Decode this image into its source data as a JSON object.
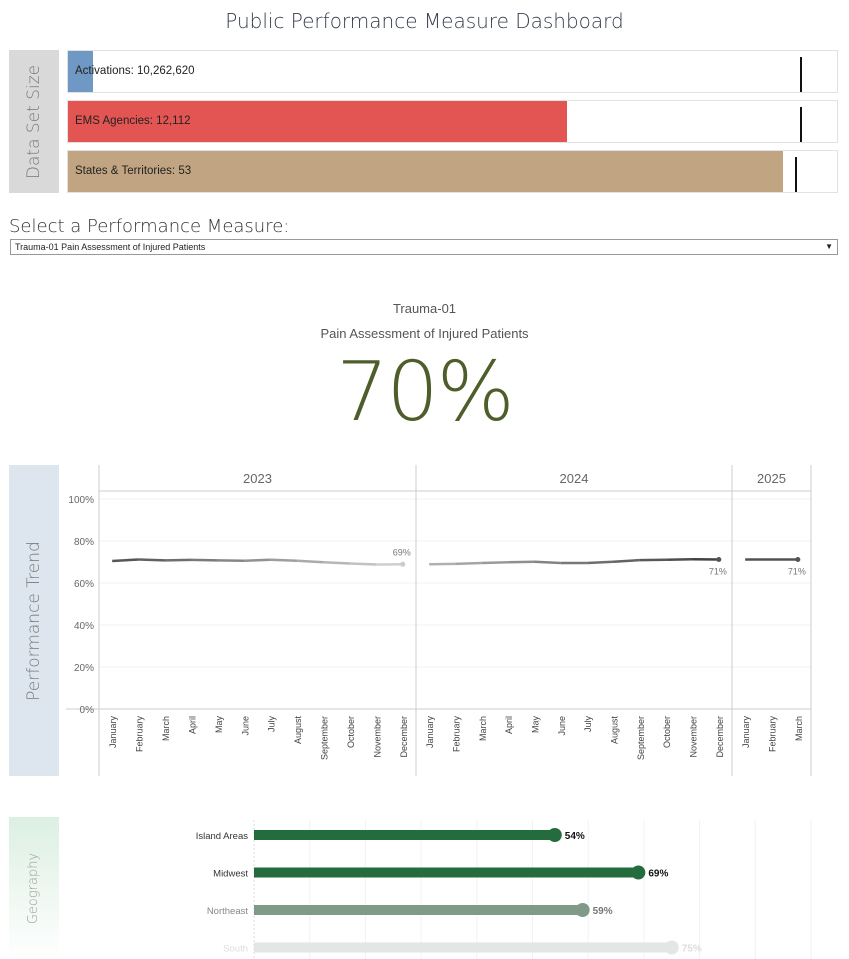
{
  "title": "Public Performance Measure Dashboard",
  "dataset": {
    "label": "Data Set Size",
    "bars": [
      {
        "label": "Activations: 10,262,620",
        "fill": 0.032,
        "ref": 0.952,
        "color": "#7098c4"
      },
      {
        "label": "EMS Agencies: 12,112",
        "fill": 0.649,
        "ref": 0.952,
        "color": "#e35552"
      },
      {
        "label": "States & Territories: 53",
        "fill": 0.93,
        "ref": 0.945,
        "color": "#c1a582"
      }
    ]
  },
  "selector": {
    "label": "Select a Performance Measure:",
    "value": "Trauma-01 Pain Assessment of Injured Patients"
  },
  "kpi": {
    "code": "Trauma-01",
    "name": "Pain Assessment of Injured Patients",
    "value": "70%"
  },
  "trend": {
    "label": "Performance Trend"
  },
  "geography": {
    "label": "Geography"
  },
  "chart_data": [
    {
      "type": "line",
      "title": "",
      "ylim": [
        0,
        100
      ],
      "yticks": [
        "0%",
        "20%",
        "40%",
        "60%",
        "80%",
        "100%"
      ],
      "panes": [
        {
          "year": "2023",
          "months": [
            "January",
            "February",
            "March",
            "April",
            "May",
            "June",
            "July",
            "August",
            "September",
            "October",
            "November",
            "December"
          ],
          "values": [
            70.5,
            71.2,
            70.8,
            71,
            70.8,
            70.6,
            71.1,
            70.6,
            69.9,
            69.3,
            68.8,
            68.9
          ],
          "end_label": "69%"
        },
        {
          "year": "2024",
          "months": [
            "January",
            "February",
            "March",
            "April",
            "May",
            "June",
            "July",
            "August",
            "September",
            "October",
            "November",
            "December"
          ],
          "values": [
            68.9,
            69.1,
            69.5,
            69.9,
            70.1,
            69.5,
            69.5,
            70.1,
            70.9,
            71.1,
            71.3,
            71.2
          ],
          "end_label": "71%"
        },
        {
          "year": "2025",
          "months": [
            "January",
            "February",
            "March"
          ],
          "values": [
            71.2,
            71.2,
            71.2
          ],
          "end_label": "71%"
        }
      ]
    },
    {
      "type": "bar",
      "title": "",
      "xlim": [
        0,
        100
      ],
      "categories": [
        "Island Areas",
        "Midwest",
        "Northeast",
        "South"
      ],
      "values": [
        54,
        69,
        59,
        75
      ],
      "labels": [
        "54%",
        "69%",
        "59%",
        "75%"
      ]
    }
  ]
}
